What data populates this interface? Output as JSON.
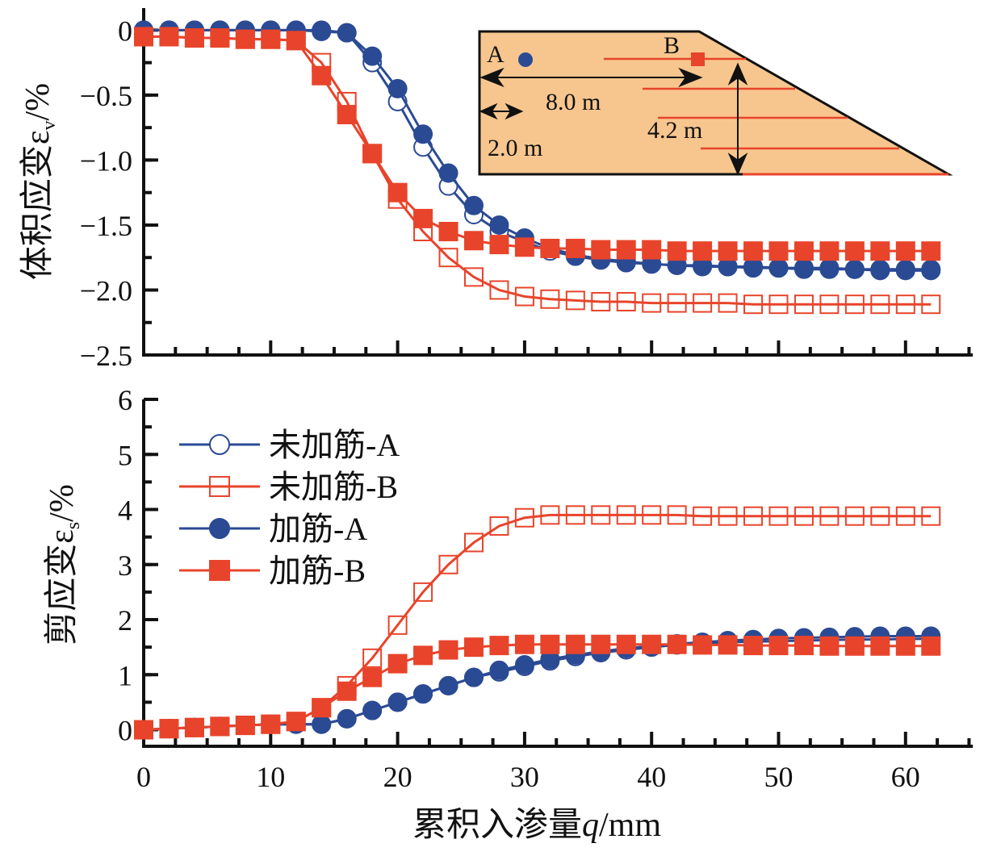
{
  "chart_data": [
    {
      "type": "line",
      "name": "volumetric-strain",
      "ylabel": "体积应变ε",
      "ylabel_sub": "v",
      "ylabel_unit": "/%",
      "ylim": [
        -2.5,
        0.17
      ],
      "yticks": [
        0,
        -0.5,
        -1.0,
        -1.5,
        -2.0,
        -2.5
      ],
      "ytick_labels": [
        "0",
        "−0.5",
        "−1.0",
        "−1.5",
        "−2.0",
        "−2.5"
      ],
      "x": [
        0,
        2,
        4,
        6,
        8,
        10,
        12,
        14,
        16,
        18,
        20,
        22,
        24,
        26,
        28,
        30,
        32,
        34,
        36,
        38,
        40,
        42,
        44,
        46,
        48,
        50,
        52,
        54,
        56,
        58,
        60,
        62
      ],
      "series": [
        {
          "name": "未加筋-A",
          "values": [
            0,
            0,
            0,
            0,
            0,
            0,
            0,
            0,
            -0.02,
            -0.25,
            -0.55,
            -0.9,
            -1.2,
            -1.42,
            -1.55,
            -1.63,
            -1.7,
            -1.74,
            -1.77,
            -1.79,
            -1.8,
            -1.81,
            -1.81,
            -1.82,
            -1.82,
            -1.83,
            -1.83,
            -1.83,
            -1.84,
            -1.84,
            -1.84,
            -1.84
          ]
        },
        {
          "name": "未加筋-B",
          "values": [
            -0.05,
            -0.05,
            -0.06,
            -0.06,
            -0.07,
            -0.07,
            -0.08,
            -0.25,
            -0.55,
            -0.95,
            -1.3,
            -1.55,
            -1.75,
            -1.9,
            -2.0,
            -2.05,
            -2.07,
            -2.08,
            -2.09,
            -2.09,
            -2.1,
            -2.1,
            -2.1,
            -2.1,
            -2.11,
            -2.11,
            -2.11,
            -2.11,
            -2.11,
            -2.11,
            -2.11,
            -2.11
          ]
        },
        {
          "name": "加筋-A",
          "values": [
            0,
            0,
            0,
            0,
            0,
            0,
            0,
            -0.01,
            -0.02,
            -0.2,
            -0.45,
            -0.8,
            -1.1,
            -1.35,
            -1.5,
            -1.6,
            -1.68,
            -1.73,
            -1.76,
            -1.78,
            -1.8,
            -1.81,
            -1.82,
            -1.82,
            -1.83,
            -1.83,
            -1.84,
            -1.84,
            -1.84,
            -1.85,
            -1.85,
            -1.85
          ]
        },
        {
          "name": "加筋-B",
          "values": [
            -0.05,
            -0.05,
            -0.06,
            -0.06,
            -0.07,
            -0.07,
            -0.08,
            -0.35,
            -0.65,
            -0.95,
            -1.25,
            -1.45,
            -1.55,
            -1.62,
            -1.65,
            -1.67,
            -1.68,
            -1.68,
            -1.69,
            -1.69,
            -1.69,
            -1.7,
            -1.7,
            -1.7,
            -1.7,
            -1.7,
            -1.7,
            -1.7,
            -1.7,
            -1.7,
            -1.7,
            -1.7
          ]
        }
      ],
      "inset": {
        "point_a": "A",
        "point_b": "B",
        "dim_8": "8.0 m",
        "dim_2": "2.0 m",
        "dim_42": "4.2 m"
      }
    },
    {
      "type": "line",
      "name": "shear-strain",
      "ylabel": "剪应变ε",
      "ylabel_sub": "s",
      "ylabel_unit": "/%",
      "xlabel": "累积入渗量",
      "xlabel_var": "q",
      "xlabel_unit": "/mm",
      "xlim": [
        0,
        65.3
      ],
      "xticks": [
        0,
        10,
        20,
        30,
        40,
        50,
        60
      ],
      "ylim": [
        -0.3,
        6
      ],
      "yticks": [
        0,
        1,
        2,
        3,
        4,
        5,
        6
      ],
      "x": [
        0,
        2,
        4,
        6,
        8,
        10,
        12,
        14,
        16,
        18,
        20,
        22,
        24,
        26,
        28,
        30,
        32,
        34,
        36,
        38,
        40,
        42,
        44,
        46,
        48,
        50,
        52,
        54,
        56,
        58,
        60,
        62
      ],
      "series": [
        {
          "name": "未加筋-A",
          "values": [
            0,
            0.02,
            0.04,
            0.06,
            0.08,
            0.1,
            0.1,
            0.1,
            0.2,
            0.35,
            0.5,
            0.65,
            0.8,
            0.95,
            1.05,
            1.15,
            1.25,
            1.33,
            1.4,
            1.45,
            1.5,
            1.54,
            1.57,
            1.59,
            1.6,
            1.61,
            1.62,
            1.63,
            1.64,
            1.64,
            1.65,
            1.65
          ]
        },
        {
          "name": "未加筋-B",
          "values": [
            0,
            0.02,
            0.04,
            0.06,
            0.08,
            0.1,
            0.15,
            0.4,
            0.8,
            1.3,
            1.9,
            2.5,
            3.0,
            3.4,
            3.7,
            3.85,
            3.9,
            3.9,
            3.9,
            3.9,
            3.9,
            3.9,
            3.88,
            3.88,
            3.88,
            3.88,
            3.88,
            3.88,
            3.88,
            3.88,
            3.88,
            3.88
          ]
        },
        {
          "name": "加筋-A",
          "values": [
            0,
            0.02,
            0.04,
            0.06,
            0.08,
            0.1,
            0.1,
            0.1,
            0.2,
            0.35,
            0.5,
            0.65,
            0.8,
            0.95,
            1.08,
            1.18,
            1.28,
            1.36,
            1.42,
            1.48,
            1.52,
            1.56,
            1.59,
            1.62,
            1.64,
            1.66,
            1.67,
            1.68,
            1.69,
            1.7,
            1.7,
            1.7
          ]
        },
        {
          "name": "加筋-B",
          "values": [
            0,
            0.02,
            0.04,
            0.06,
            0.08,
            0.1,
            0.15,
            0.4,
            0.7,
            0.95,
            1.2,
            1.35,
            1.45,
            1.5,
            1.53,
            1.55,
            1.55,
            1.55,
            1.55,
            1.55,
            1.55,
            1.55,
            1.54,
            1.54,
            1.53,
            1.53,
            1.53,
            1.52,
            1.52,
            1.52,
            1.52,
            1.52
          ]
        }
      ]
    }
  ],
  "colors": {
    "blue": "#2b4a94",
    "red": "#e8442b",
    "inset_fill": "#f7c68e"
  }
}
